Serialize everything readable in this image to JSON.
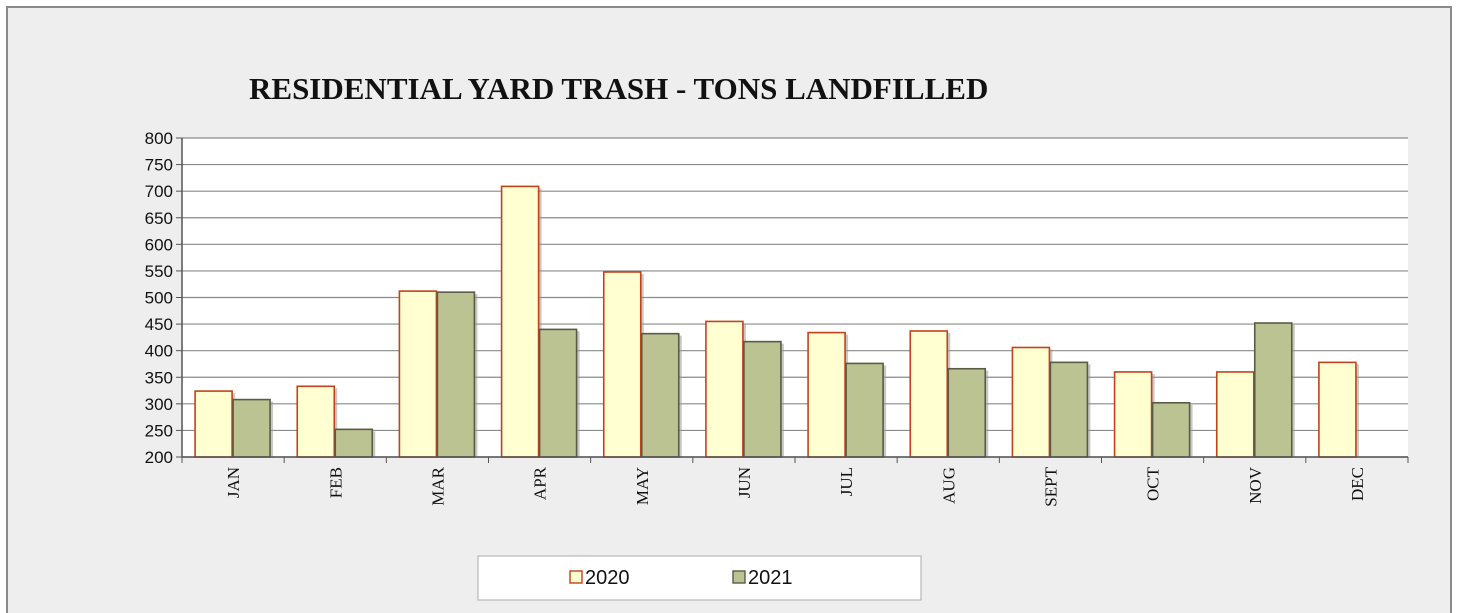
{
  "chart_data": {
    "type": "bar",
    "title": "RESIDENTIAL YARD TRASH - TONS LANDFILLED",
    "xlabel": "",
    "ylabel": "",
    "categories": [
      "JAN",
      "FEB",
      "MAR",
      "APR",
      "MAY",
      "JUN",
      "JUL",
      "AUG",
      "SEPT",
      "OCT",
      "NOV",
      "DEC"
    ],
    "series": [
      {
        "name": "2020",
        "color": "#ffffd2",
        "stroke": "#c2431b",
        "values": [
          324,
          333,
          512,
          709,
          548,
          455,
          434,
          437,
          406,
          360,
          360,
          378
        ]
      },
      {
        "name": "2021",
        "color": "#bcc392",
        "stroke": "#5a5a46",
        "values": [
          308,
          252,
          510,
          440,
          432,
          417,
          376,
          366,
          378,
          302,
          452,
          null
        ]
      }
    ],
    "ylim": [
      200,
      800
    ],
    "yticks": [
      200,
      250,
      300,
      350,
      400,
      450,
      500,
      550,
      600,
      650,
      700,
      750,
      800
    ],
    "grid": true,
    "legend_position": "bottom"
  }
}
